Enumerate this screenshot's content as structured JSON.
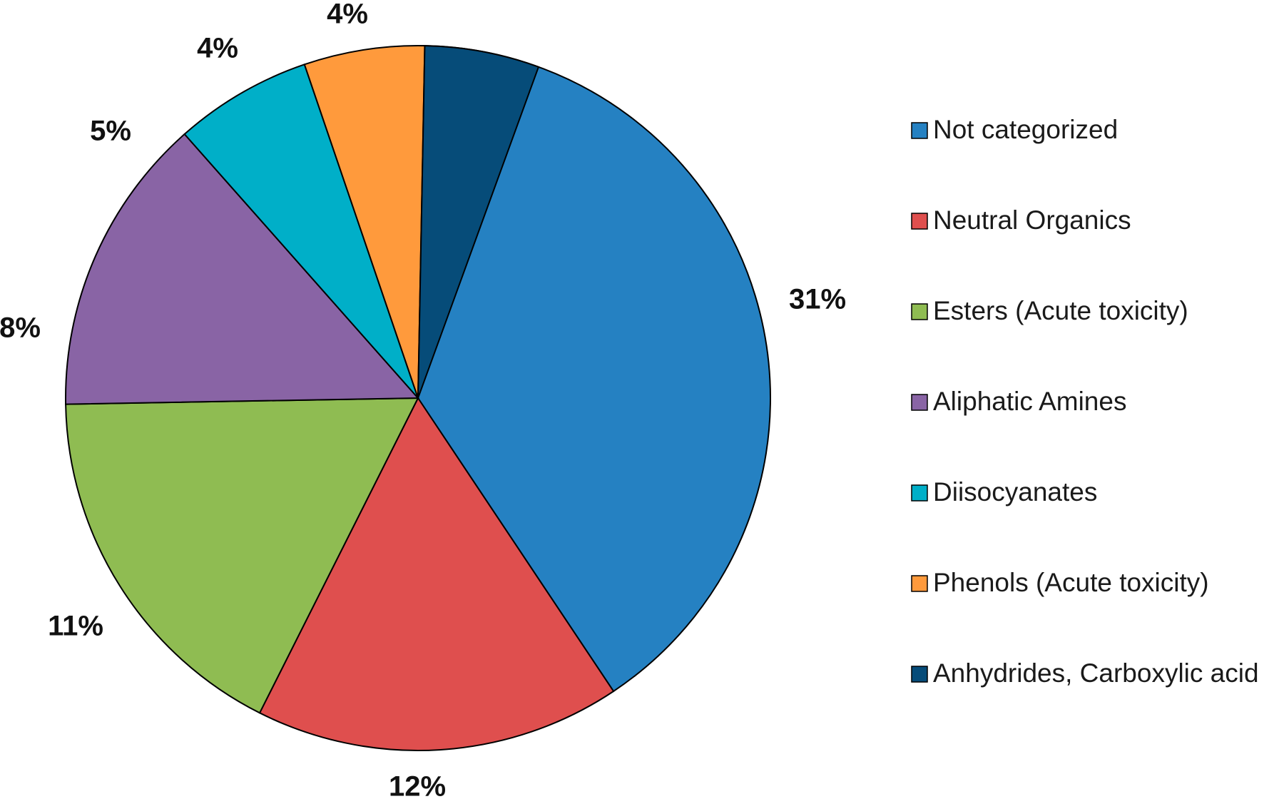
{
  "chart_data": {
    "type": "pie",
    "start": "12 o'clock, clockwise",
    "slices": [
      {
        "label": "Not categorized",
        "value_label": "31%",
        "color": "#2581C2"
      },
      {
        "label": "Neutral Organics",
        "value_label": "12%",
        "color": "#DF4F4E"
      },
      {
        "label": "Esters (Acute toxicity)",
        "value_label": "11%",
        "color": "#8FBC52"
      },
      {
        "label": "Aliphatic Amines",
        "value_label": "8%",
        "color": "#8964A5"
      },
      {
        "label": "Diisocyanates",
        "value_label": "5%",
        "color": "#00AFC8"
      },
      {
        "label": "Phenols (Acute toxicity)",
        "value_label": "4%",
        "color": "#FF9A3C"
      },
      {
        "label": "Anhydrides, Carboxylic acid",
        "value_label": "4%",
        "color": "#064C79"
      }
    ],
    "legend_position": "right"
  }
}
